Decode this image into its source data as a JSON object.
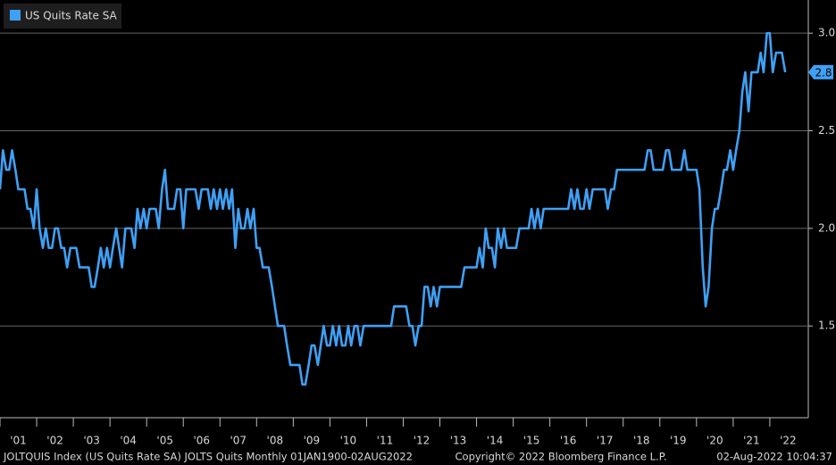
{
  "chart_data": {
    "type": "line",
    "legend": "US Quits Rate SA",
    "footer": [
      "JOLTQUIS Index (US Quits Rate SA) JOLTS Quits  Monthly 01JAN1900-02AUG2022",
      "Copyright© 2022 Bloomberg Finance L.P.",
      "02-Aug-2022 10:04:37"
    ],
    "x": [
      2001,
      2001.08,
      2001.17,
      2001.25,
      2001.33,
      2001.42,
      2001.5,
      2001.58,
      2001.67,
      2001.75,
      2001.83,
      2001.92,
      2002,
      2002.08,
      2002.17,
      2002.25,
      2002.33,
      2002.42,
      2002.5,
      2002.58,
      2002.67,
      2002.75,
      2002.83,
      2002.92,
      2003,
      2003.08,
      2003.17,
      2003.25,
      2003.33,
      2003.42,
      2003.5,
      2003.58,
      2003.67,
      2003.75,
      2003.83,
      2003.92,
      2004,
      2004.08,
      2004.17,
      2004.25,
      2004.33,
      2004.42,
      2004.5,
      2004.58,
      2004.67,
      2004.75,
      2004.83,
      2004.92,
      2005,
      2005.08,
      2005.17,
      2005.25,
      2005.33,
      2005.42,
      2005.5,
      2005.58,
      2005.67,
      2005.75,
      2005.83,
      2005.92,
      2006,
      2006.08,
      2006.17,
      2006.25,
      2006.33,
      2006.42,
      2006.5,
      2006.58,
      2006.67,
      2006.75,
      2006.83,
      2006.92,
      2007,
      2007.08,
      2007.17,
      2007.25,
      2007.33,
      2007.42,
      2007.5,
      2007.58,
      2007.67,
      2007.75,
      2007.83,
      2007.92,
      2008,
      2008.08,
      2008.17,
      2008.25,
      2008.33,
      2008.42,
      2008.5,
      2008.58,
      2008.67,
      2008.75,
      2008.83,
      2008.92,
      2009,
      2009.08,
      2009.17,
      2009.25,
      2009.33,
      2009.42,
      2009.5,
      2009.58,
      2009.67,
      2009.75,
      2009.83,
      2009.92,
      2010,
      2010.08,
      2010.17,
      2010.25,
      2010.33,
      2010.42,
      2010.5,
      2010.58,
      2010.67,
      2010.75,
      2010.83,
      2010.92,
      2011,
      2011.08,
      2011.17,
      2011.25,
      2011.33,
      2011.42,
      2011.5,
      2011.58,
      2011.67,
      2011.75,
      2011.83,
      2011.92,
      2012,
      2012.08,
      2012.17,
      2012.25,
      2012.33,
      2012.42,
      2012.5,
      2012.58,
      2012.67,
      2012.75,
      2012.83,
      2012.92,
      2013,
      2013.08,
      2013.17,
      2013.25,
      2013.33,
      2013.42,
      2013.5,
      2013.58,
      2013.67,
      2013.75,
      2013.83,
      2013.92,
      2014,
      2014.08,
      2014.17,
      2014.25,
      2014.33,
      2014.42,
      2014.5,
      2014.58,
      2014.67,
      2014.75,
      2014.83,
      2014.92,
      2015,
      2015.08,
      2015.17,
      2015.25,
      2015.33,
      2015.42,
      2015.5,
      2015.58,
      2015.67,
      2015.75,
      2015.83,
      2015.92,
      2016,
      2016.08,
      2016.17,
      2016.25,
      2016.33,
      2016.42,
      2016.5,
      2016.58,
      2016.67,
      2016.75,
      2016.83,
      2016.92,
      2017,
      2017.08,
      2017.17,
      2017.25,
      2017.33,
      2017.42,
      2017.5,
      2017.58,
      2017.67,
      2017.75,
      2017.83,
      2017.92,
      2018,
      2018.08,
      2018.17,
      2018.25,
      2018.33,
      2018.42,
      2018.5,
      2018.58,
      2018.67,
      2018.75,
      2018.83,
      2018.92,
      2019,
      2019.08,
      2019.17,
      2019.25,
      2019.33,
      2019.42,
      2019.5,
      2019.58,
      2019.67,
      2019.75,
      2019.83,
      2019.92,
      2020,
      2020.08,
      2020.17,
      2020.25,
      2020.33,
      2020.42,
      2020.5,
      2020.58,
      2020.67,
      2020.75,
      2020.83,
      2020.92,
      2021,
      2021.08,
      2021.17,
      2021.25,
      2021.33,
      2021.42,
      2021.5,
      2021.58,
      2021.67,
      2021.75,
      2021.83,
      2021.92,
      2022,
      2022.08,
      2022.17,
      2022.25,
      2022.33,
      2022.42
    ],
    "series": [
      {
        "name": "US Quits Rate SA",
        "color": "#3fa0f5",
        "values": [
          2.2,
          2.4,
          2.3,
          2.3,
          2.4,
          2.3,
          2.2,
          2.2,
          2.2,
          2.1,
          2.1,
          2.0,
          2.2,
          2.0,
          1.9,
          2.0,
          1.9,
          1.9,
          2.0,
          2.0,
          1.9,
          1.9,
          1.8,
          1.9,
          1.9,
          1.9,
          1.8,
          1.8,
          1.8,
          1.8,
          1.7,
          1.7,
          1.8,
          1.9,
          1.8,
          1.9,
          1.8,
          1.9,
          2.0,
          1.9,
          1.8,
          2.0,
          2.0,
          2.0,
          1.9,
          2.1,
          2.0,
          2.1,
          2.0,
          2.1,
          2.1,
          2.1,
          2.0,
          2.2,
          2.3,
          2.1,
          2.1,
          2.1,
          2.2,
          2.2,
          2.0,
          2.2,
          2.2,
          2.2,
          2.2,
          2.1,
          2.2,
          2.2,
          2.2,
          2.1,
          2.2,
          2.1,
          2.2,
          2.1,
          2.2,
          2.1,
          2.2,
          1.9,
          2.1,
          2.0,
          2.0,
          2.1,
          2.0,
          2.1,
          1.9,
          1.9,
          1.8,
          1.8,
          1.8,
          1.7,
          1.6,
          1.5,
          1.5,
          1.5,
          1.4,
          1.3,
          1.3,
          1.3,
          1.3,
          1.2,
          1.2,
          1.3,
          1.4,
          1.4,
          1.3,
          1.4,
          1.5,
          1.4,
          1.4,
          1.5,
          1.4,
          1.5,
          1.4,
          1.4,
          1.5,
          1.4,
          1.5,
          1.5,
          1.4,
          1.5,
          1.5,
          1.5,
          1.5,
          1.5,
          1.5,
          1.5,
          1.5,
          1.5,
          1.5,
          1.6,
          1.6,
          1.6,
          1.6,
          1.6,
          1.5,
          1.5,
          1.4,
          1.5,
          1.5,
          1.7,
          1.7,
          1.6,
          1.7,
          1.6,
          1.7,
          1.7,
          1.7,
          1.7,
          1.7,
          1.7,
          1.7,
          1.7,
          1.8,
          1.8,
          1.8,
          1.8,
          1.8,
          1.9,
          1.8,
          2.0,
          1.9,
          1.9,
          1.8,
          2.0,
          1.9,
          2.0,
          1.9,
          1.9,
          1.9,
          1.9,
          2.0,
          2.0,
          2.0,
          2.0,
          2.1,
          2.0,
          2.1,
          2.0,
          2.1,
          2.1,
          2.1,
          2.1,
          2.1,
          2.1,
          2.1,
          2.1,
          2.1,
          2.2,
          2.1,
          2.2,
          2.1,
          2.1,
          2.2,
          2.1,
          2.2,
          2.2,
          2.2,
          2.2,
          2.2,
          2.1,
          2.2,
          2.2,
          2.3,
          2.3,
          2.3,
          2.3,
          2.3,
          2.3,
          2.3,
          2.3,
          2.3,
          2.3,
          2.4,
          2.4,
          2.3,
          2.3,
          2.3,
          2.3,
          2.4,
          2.4,
          2.3,
          2.3,
          2.3,
          2.3,
          2.4,
          2.3,
          2.3,
          2.3,
          2.3,
          2.2,
          1.8,
          1.6,
          1.7,
          2.0,
          2.1,
          2.1,
          2.2,
          2.3,
          2.3,
          2.4,
          2.3,
          2.4,
          2.5,
          2.7,
          2.8,
          2.6,
          2.8,
          2.8,
          2.8,
          2.9,
          2.8,
          3.0,
          3.0,
          2.8,
          2.9,
          2.9,
          2.9,
          2.8
        ]
      }
    ],
    "xlim": [
      2001,
      2023.05
    ],
    "xticks": [
      {
        "value": 2001,
        "label": "'01"
      },
      {
        "value": 2002,
        "label": "'02"
      },
      {
        "value": 2003,
        "label": "'03"
      },
      {
        "value": 2004,
        "label": "'04"
      },
      {
        "value": 2005,
        "label": "'05"
      },
      {
        "value": 2006,
        "label": "'06"
      },
      {
        "value": 2007,
        "label": "'07"
      },
      {
        "value": 2008,
        "label": "'08"
      },
      {
        "value": 2009,
        "label": "'09"
      },
      {
        "value": 2010,
        "label": "'10"
      },
      {
        "value": 2011,
        "label": "'11"
      },
      {
        "value": 2012,
        "label": "'12"
      },
      {
        "value": 2013,
        "label": "'13"
      },
      {
        "value": 2014,
        "label": "'14"
      },
      {
        "value": 2015,
        "label": "'15"
      },
      {
        "value": 2016,
        "label": "'16"
      },
      {
        "value": 2017,
        "label": "'17"
      },
      {
        "value": 2018,
        "label": "'18"
      },
      {
        "value": 2019,
        "label": "'19"
      },
      {
        "value": 2020,
        "label": "'20"
      },
      {
        "value": 2021,
        "label": "'21"
      },
      {
        "value": 2022,
        "label": "'22"
      }
    ],
    "ylim": [
      1.03,
      3.17
    ],
    "yticks": [
      {
        "value": 1.5,
        "label": "1.5"
      },
      {
        "value": 2,
        "label": "2.0"
      },
      {
        "value": 2.5,
        "label": "2.5"
      },
      {
        "value": 3,
        "label": "3.0"
      }
    ],
    "grid": true
  }
}
